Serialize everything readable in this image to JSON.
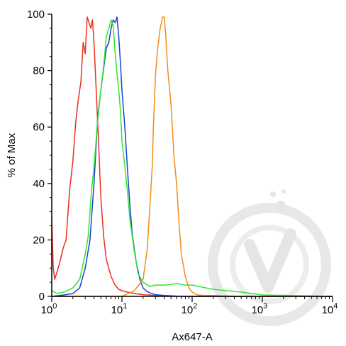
{
  "chart_data": {
    "type": "line",
    "xlabel": "Ax647-A",
    "ylabel": "% of Max",
    "xscale": "log",
    "xlim": [
      1,
      10000
    ],
    "ylim": [
      0,
      100
    ],
    "x_ticks": [
      {
        "base": "10",
        "exp": "0"
      },
      {
        "base": "10",
        "exp": "1"
      },
      {
        "base": "10",
        "exp": "2"
      },
      {
        "base": "10",
        "exp": "3"
      },
      {
        "base": "10",
        "exp": "4"
      }
    ],
    "y_ticks": [
      "0",
      "20",
      "40",
      "60",
      "80",
      "100"
    ],
    "grid": false,
    "series": [
      {
        "color": "#e8301e",
        "x": [
          1.0,
          1.05,
          1.1,
          1.2,
          1.3,
          1.45,
          1.6,
          1.8,
          2.0,
          2.2,
          2.4,
          2.6,
          2.8,
          3.0,
          3.2,
          3.4,
          3.6,
          3.8,
          4.0,
          4.3,
          4.6,
          5.0,
          5.5,
          6.0,
          7.0,
          8.0,
          9.0,
          10.0,
          12.0,
          15.0,
          20.0,
          30.0,
          50.0,
          100.0,
          1000.0,
          10000.0
        ],
        "y": [
          28,
          10,
          6,
          9,
          12,
          17,
          20,
          38,
          48,
          62,
          70,
          76,
          90,
          86,
          99,
          97,
          95,
          98,
          90,
          73,
          57,
          35,
          21,
          13,
          7,
          4,
          2.5,
          2,
          1.5,
          1,
          0.6,
          0.3,
          0.1,
          0,
          0,
          0
        ]
      },
      {
        "color": "#1d3ed6",
        "x": [
          1.0,
          1.5,
          2.0,
          2.5,
          3.0,
          3.5,
          4.0,
          4.5,
          5.0,
          5.5,
          6.0,
          6.5,
          7.0,
          7.5,
          8.0,
          8.5,
          9.0,
          9.5,
          10.0,
          11.0,
          12.0,
          13.0,
          14.0,
          16.0,
          18.0,
          20.0,
          22.0,
          25.0,
          30.0,
          40.0,
          60.0,
          100.0,
          200.0,
          1000.0,
          10000.0
        ],
        "y": [
          0,
          0.5,
          1,
          3,
          10,
          20,
          40,
          63,
          73,
          81,
          88,
          90,
          95,
          98,
          97,
          99,
          92,
          83,
          73,
          60,
          45,
          32,
          22,
          12,
          6,
          3,
          2,
          1.2,
          0.6,
          0.3,
          0.1,
          0,
          0,
          0,
          0
        ]
      },
      {
        "color": "#2ce82c",
        "x": [
          1.0,
          1.2,
          1.5,
          2.0,
          2.5,
          3.0,
          3.3,
          3.7,
          4.0,
          4.5,
          5.0,
          5.5,
          6.0,
          6.5,
          7.0,
          7.5,
          8.0,
          8.5,
          9.0,
          9.5,
          10.0,
          11.0,
          12.0,
          13.0,
          15.0,
          17.0,
          20.0,
          25.0,
          30.0,
          40.0,
          60.0,
          80.0,
          100.0,
          200.0,
          500.0,
          1000.0,
          10000.0
        ],
        "y": [
          2,
          1,
          1.5,
          3,
          6,
          15,
          21,
          38,
          46,
          62,
          73,
          82,
          92,
          95,
          98,
          96,
          86,
          79,
          73,
          66,
          55,
          46,
          37,
          27,
          16,
          8,
          5,
          3.5,
          4,
          4,
          4.5,
          4,
          4,
          2.5,
          1.5,
          0.5,
          0
        ]
      },
      {
        "color": "#f28c1c",
        "x": [
          1.0,
          10.0,
          15.0,
          20.0,
          23.0,
          25.0,
          27.0,
          28.0,
          30.0,
          32.0,
          35.0,
          38.0,
          40.0,
          42.0,
          45.0,
          50.0,
          55.0,
          60.0,
          65.0,
          70.0,
          80.0,
          90.0,
          100.0,
          120.0,
          150.0,
          200.0,
          500.0,
          1000.0,
          10000.0
        ],
        "y": [
          0,
          0,
          2,
          6,
          17,
          32,
          46,
          60,
          78,
          87,
          95,
          99,
          99,
          93,
          80,
          68,
          50,
          40,
          26,
          15,
          7,
          3,
          1.5,
          0.5,
          0.3,
          0.3,
          0,
          0,
          0
        ]
      }
    ]
  }
}
